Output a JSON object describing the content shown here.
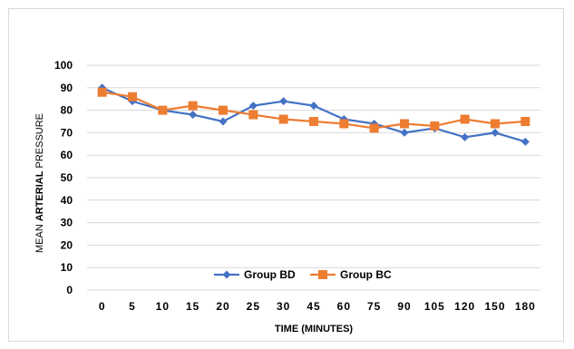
{
  "chart_data": {
    "type": "line",
    "title": "",
    "xlabel": "TIME (MINUTES)",
    "ylabel_parts": [
      {
        "text": "MEAN ",
        "bold": false
      },
      {
        "text": "ARTERIAL",
        "bold": true
      },
      {
        "text": " PRESSURE",
        "bold": false
      }
    ],
    "categories": [
      "0",
      "5",
      "10",
      "15",
      "20",
      "25",
      "30",
      "45",
      "60",
      "75",
      "90",
      "105",
      "120",
      "150",
      "180"
    ],
    "ylim": [
      0,
      100
    ],
    "yticks": [
      0,
      10,
      20,
      30,
      40,
      50,
      60,
      70,
      80,
      90,
      100
    ],
    "grid": true,
    "legend_position": "bottom-inside",
    "series": [
      {
        "name": "Group BD",
        "color": "#4472c4",
        "marker": "diamond",
        "values": [
          90,
          84,
          80,
          78,
          75,
          82,
          84,
          82,
          76,
          74,
          70,
          72,
          68,
          70,
          66
        ]
      },
      {
        "name": "Group BC",
        "color": "#ed7d31",
        "marker": "square",
        "values": [
          88,
          86,
          80,
          82,
          80,
          78,
          76,
          75,
          74,
          72,
          74,
          73,
          76,
          74,
          75
        ]
      }
    ]
  }
}
